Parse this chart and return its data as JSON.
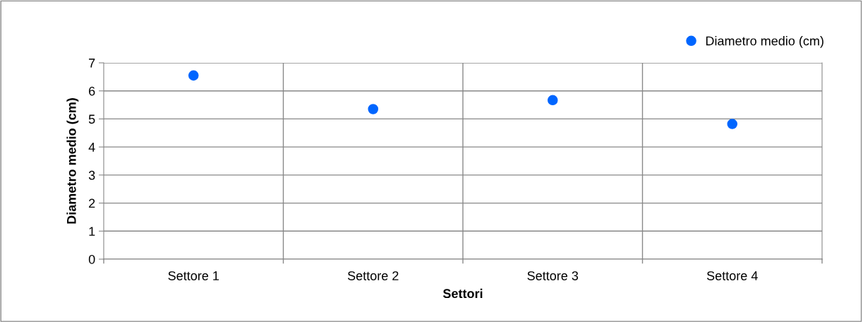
{
  "chart_data": {
    "type": "scatter",
    "xlabel": "Settori",
    "ylabel": "Diametro medio (cm)",
    "categories": [
      "Settore 1",
      "Settore 2",
      "Settore 3",
      "Settore 4"
    ],
    "series": [
      {
        "name": "Diametro medio (cm)",
        "color": "#0066ff",
        "values": [
          6.55,
          5.35,
          5.67,
          4.82
        ]
      }
    ],
    "ylim": [
      0,
      7
    ],
    "yticks": [
      0,
      1,
      2,
      3,
      4,
      5,
      6,
      7
    ],
    "grid": true,
    "legend": "top right",
    "marker": "circle"
  }
}
